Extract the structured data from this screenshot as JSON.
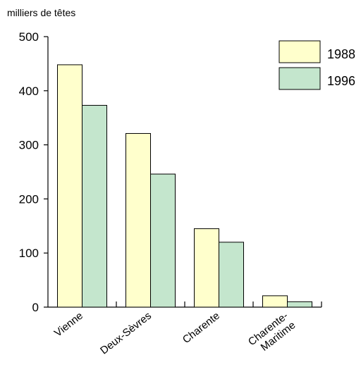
{
  "chart_data": {
    "type": "bar",
    "ylabel": "milliers de têtes",
    "ylim": [
      0,
      500
    ],
    "yticks": [
      "0",
      "100",
      "200",
      "300",
      "400",
      "500"
    ],
    "categories": [
      [
        "Vienne"
      ],
      [
        "Deux-Sèvres"
      ],
      [
        "Charente"
      ],
      [
        "Charente-",
        "Maritime"
      ]
    ],
    "series": [
      {
        "name": "1988",
        "color": "#ffffcc",
        "values": [
          448,
          321,
          145,
          21
        ]
      },
      {
        "name": "1996",
        "color": "#c4e6cd",
        "values": [
          373,
          246,
          120,
          10
        ]
      }
    ],
    "legend_position": "top-right",
    "grid": false
  }
}
